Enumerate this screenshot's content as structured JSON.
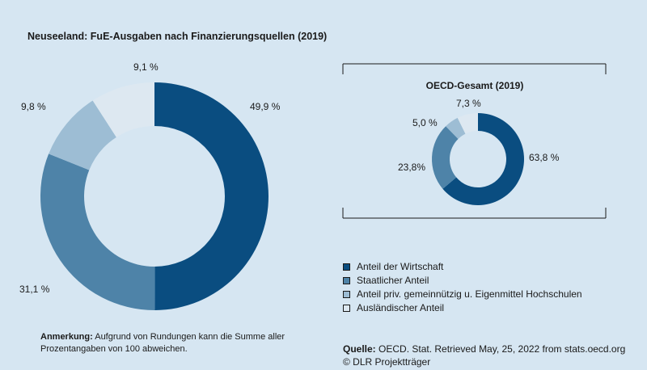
{
  "chart_data": [
    {
      "type": "donut",
      "title": "Neuseeland: FuE-Ausgaben nach Finanzierungsquellen (2019)",
      "categories": [
        "Anteil der Wirtschaft",
        "Staatlicher Anteil",
        "Anteil priv. gemeinnützig u. Eigenmittel Hochschulen",
        "Ausländischer Anteil"
      ],
      "values": [
        49.9,
        31.1,
        9.8,
        9.1
      ],
      "labels": [
        "49,9 %",
        "31,1 %",
        "9,8 %",
        "9,1 %"
      ]
    },
    {
      "type": "donut",
      "title": "OECD-Gesamt (2019)",
      "categories": [
        "Anteil der Wirtschaft",
        "Staatlicher Anteil",
        "Anteil priv. gemeinnützig u. Eigenmittel Hochschulen",
        "Ausländischer Anteil"
      ],
      "values": [
        63.8,
        23.8,
        5.0,
        7.3
      ],
      "labels": [
        "63,8 %",
        "23,8%",
        "5,0 %",
        "7,3 %"
      ]
    }
  ],
  "colors": [
    "#0a4d80",
    "#4e83a8",
    "#9dbdd4",
    "#dde8f1"
  ],
  "legend": {
    "items": [
      "Anteil der Wirtschaft",
      "Staatlicher Anteil",
      "Anteil priv. gemeinnützig u. Eigenmittel Hochschulen",
      "Ausländischer Anteil"
    ]
  },
  "note": {
    "label": "Anmerkung:",
    "text": " Aufgrund von Rundungen kann die Summe aller Prozentangaben von 100 abweichen."
  },
  "source": {
    "label": "Quelle:",
    "text": " OECD. Stat. Retrieved May, 25, 2022 from stats.oecd.org",
    "copyright": "© DLR Projektträger"
  }
}
